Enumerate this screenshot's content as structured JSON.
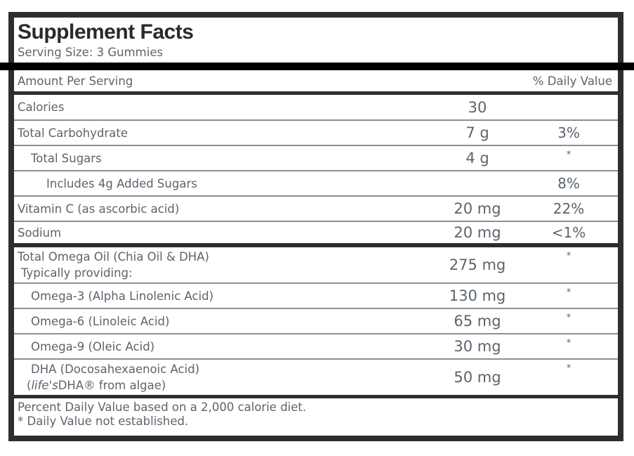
{
  "title": "Supplement Facts",
  "serving_size": "Serving Size: 3 Gummies",
  "header": {
    "amount_label": "Amount Per Serving",
    "daily_value_label": "% Daily Value"
  },
  "rows": [
    {
      "label": "Calories",
      "amount": "30",
      "dv": "",
      "indent": 0
    },
    {
      "label": "Total Carbohydrate",
      "amount": "7 g",
      "dv": "3%",
      "indent": 0
    },
    {
      "label": "Total Sugars",
      "amount": "4 g",
      "dv": "*",
      "indent": 1
    },
    {
      "label": "Includes 4g Added Sugars",
      "amount": "",
      "dv": "8%",
      "indent": 2
    },
    {
      "label": "Vitamin C (as ascorbic acid)",
      "amount": "20 mg",
      "dv": "22%",
      "indent": 0
    },
    {
      "label": "Sodium",
      "amount": "20 mg",
      "dv": "<1%",
      "indent": 0,
      "section_end": true
    },
    {
      "label": "Total Omega Oil (Chia Oil & DHA)",
      "label2": "Typically providing:",
      "amount": "275 mg",
      "dv": "*",
      "indent": 0
    },
    {
      "label": "Omega-3 (Alpha Linolenic Acid)",
      "amount": "130 mg",
      "dv": "*",
      "indent": 1
    },
    {
      "label": "Omega-6 (Linoleic Acid)",
      "amount": "65 mg",
      "dv": "*",
      "indent": 1
    },
    {
      "label": "Omega-9 (Oleic Acid)",
      "amount": "30 mg",
      "dv": "*",
      "indent": 1
    },
    {
      "label": "DHA (Docosahexaenoic Acid)",
      "label2_pre": "(",
      "label2_italic": "life's",
      "label2_post": "DHA® from algae)",
      "amount": "50 mg",
      "dv": "*",
      "indent": 1,
      "section_end": true
    }
  ],
  "footer": {
    "line1": "Percent Daily Value based on a 2,000 calorie diet.",
    "line2": "* Daily Value not established."
  },
  "colors": {
    "border_dark": "#2e2e2e",
    "section_bar": "#2d2d2d",
    "black_bar": "#000000",
    "thin_divider": "#8f8f8f",
    "title_text": "#2b2a29",
    "body_text": "#5b646d",
    "background": "#ffffff"
  }
}
